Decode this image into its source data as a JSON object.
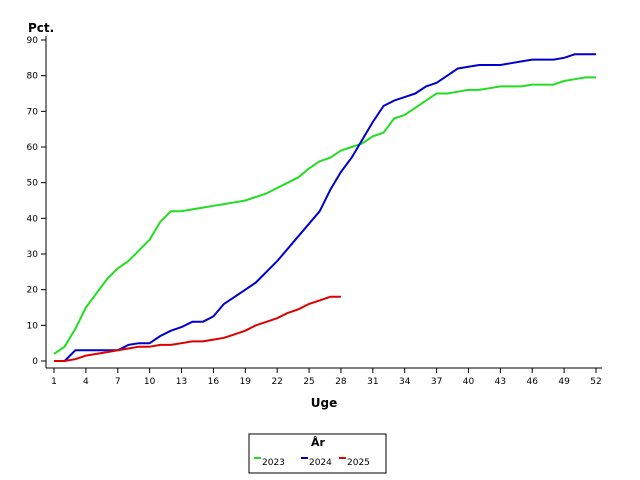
{
  "chart_data": {
    "type": "line",
    "xlabel": "Uge",
    "ylabel": "Pct.",
    "xlim": [
      1,
      52
    ],
    "ylim": [
      0,
      90
    ],
    "x_ticks": [
      1,
      4,
      7,
      10,
      13,
      16,
      19,
      22,
      25,
      28,
      31,
      34,
      37,
      40,
      43,
      46,
      49,
      52
    ],
    "y_ticks": [
      0,
      10,
      20,
      30,
      40,
      50,
      60,
      70,
      80,
      90
    ],
    "grid": false,
    "legend": {
      "title": "År",
      "placement": "bottom-center"
    },
    "series": [
      {
        "name": "2023",
        "color": "#22dd22",
        "x": [
          1,
          2,
          3,
          4,
          5,
          6,
          7,
          8,
          9,
          10,
          11,
          12,
          13,
          14,
          15,
          16,
          17,
          18,
          19,
          20,
          21,
          22,
          23,
          24,
          25,
          26,
          27,
          28,
          29,
          30,
          31,
          32,
          33,
          34,
          35,
          36,
          37,
          38,
          39,
          40,
          41,
          42,
          43,
          44,
          45,
          46,
          47,
          48,
          49,
          50,
          51,
          52
        ],
        "y": [
          2,
          4,
          9,
          15,
          19,
          23,
          26,
          28,
          31,
          34,
          39,
          42,
          42,
          42.5,
          43,
          43.5,
          44,
          44.5,
          45,
          46,
          47,
          48.5,
          50,
          51.5,
          54,
          56,
          57,
          59,
          60,
          61,
          63,
          64,
          68,
          69,
          71,
          73,
          75,
          75,
          75.5,
          76,
          76,
          76.5,
          77,
          77,
          77,
          77.5,
          77.5,
          77.5,
          78.5,
          79,
          79.5,
          79.5
        ]
      },
      {
        "name": "2024",
        "color": "#0000cc",
        "x": [
          1,
          2,
          3,
          4,
          5,
          6,
          7,
          8,
          9,
          10,
          11,
          12,
          13,
          14,
          15,
          16,
          17,
          18,
          19,
          20,
          21,
          22,
          23,
          24,
          25,
          26,
          27,
          28,
          29,
          30,
          31,
          32,
          33,
          34,
          35,
          36,
          37,
          38,
          39,
          40,
          41,
          42,
          43,
          44,
          45,
          46,
          47,
          48,
          49,
          50,
          51,
          52
        ],
        "y": [
          0,
          0,
          3,
          3,
          3,
          3,
          3,
          4.5,
          5,
          5,
          7,
          8.5,
          9.5,
          11,
          11,
          12.5,
          16,
          18,
          20,
          22,
          25,
          28,
          31.5,
          35,
          38.5,
          42,
          48,
          53,
          57,
          62,
          67,
          71.5,
          73,
          74,
          75,
          77,
          78,
          80,
          82,
          82.5,
          83,
          83,
          83,
          83.5,
          84,
          84.5,
          84.5,
          84.5,
          85,
          86,
          86,
          86
        ]
      },
      {
        "name": "2025",
        "color": "#dd0000",
        "x": [
          1,
          2,
          3,
          4,
          5,
          6,
          7,
          8,
          9,
          10,
          11,
          12,
          13,
          14,
          15,
          16,
          17,
          18,
          19,
          20,
          21,
          22,
          23,
          24,
          25,
          26,
          27,
          28
        ],
        "y": [
          0,
          0,
          0.5,
          1.5,
          2,
          2.5,
          3,
          3.5,
          4,
          4,
          4.5,
          4.5,
          5,
          5.5,
          5.5,
          6,
          6.5,
          7.5,
          8.5,
          10,
          11,
          12,
          13.5,
          14.5,
          16,
          17,
          18,
          18
        ]
      }
    ]
  }
}
